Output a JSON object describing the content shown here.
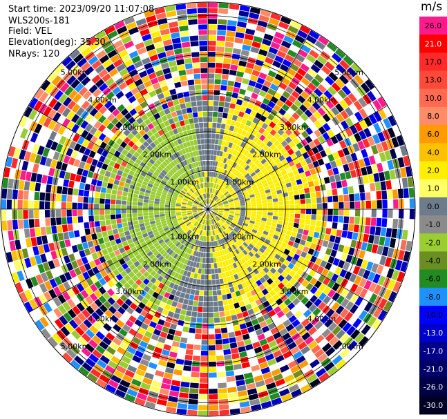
{
  "header": {
    "start_time": "Start time: 2023/09/20 11:07:08",
    "site": "WLS200s-181",
    "field": "Field: VEL",
    "elevation": "Elevation(deg): 35.30",
    "nrays": "NRays: 120"
  },
  "colorbar": {
    "unit": "m/s",
    "levels": [
      {
        "label": "26.0",
        "color": "#ff1a8c",
        "text": "#000000"
      },
      {
        "label": "21.0",
        "color": "#ff0000",
        "text": "#ffffff"
      },
      {
        "label": "17.0",
        "color": "#ff2a2a",
        "text": "#000000"
      },
      {
        "label": "13.0",
        "color": "#ff4a3a",
        "text": "#000000"
      },
      {
        "label": "10.0",
        "color": "#ff6a50",
        "text": "#000000"
      },
      {
        "label": "8.0",
        "color": "#ff8c69",
        "text": "#000000"
      },
      {
        "label": "6.0",
        "color": "#ff9a00",
        "text": "#000000"
      },
      {
        "label": "4.0",
        "color": "#ffc000",
        "text": "#000000"
      },
      {
        "label": "2.0",
        "color": "#ffee00",
        "text": "#000000"
      },
      {
        "label": "1.0",
        "color": "#ffff66",
        "text": "#000000"
      },
      {
        "label": "0.0",
        "color": "#6e7b8b",
        "text": "#000000"
      },
      {
        "label": "-1.0",
        "color": "#8b8b8b",
        "text": "#000000"
      },
      {
        "label": "-2.0",
        "color": "#9acd32",
        "text": "#000000"
      },
      {
        "label": "-4.0",
        "color": "#6b8e23",
        "text": "#000000"
      },
      {
        "label": "-6.0",
        "color": "#228b22",
        "text": "#000000"
      },
      {
        "label": "-8.0",
        "color": "#1e90ff",
        "text": "#000000"
      },
      {
        "label": "-10.0",
        "color": "#0000ff",
        "text": "#000000"
      },
      {
        "label": "-13.0",
        "color": "#0000cd",
        "text": "#ffffff"
      },
      {
        "label": "-17.0",
        "color": "#00008b",
        "text": "#ffffff"
      },
      {
        "label": "-21.0",
        "color": "#000066",
        "text": "#ffffff"
      },
      {
        "label": "-26.0",
        "color": "#000044",
        "text": "#ffffff"
      },
      {
        "label": "-30.0",
        "color": "#000022",
        "text": "#ffffff"
      }
    ]
  },
  "chart_data": {
    "type": "heatmap",
    "projection": "polar-ppi",
    "field": "VEL",
    "n_rays": 120,
    "range_rings": [
      {
        "label": "1.00km"
      },
      {
        "label": "2.00km"
      },
      {
        "label": "3.00km"
      },
      {
        "label": "4.00km"
      },
      {
        "label": "5.00km"
      }
    ],
    "sector_velocity_pattern": {
      "inner_core": {
        "color": "#ffee00"
      },
      "west_inbound": {
        "color": "#9acd32"
      },
      "east_outbound": {
        "color": "#ffee00"
      },
      "background_near_zero": {
        "color": "#6e7b8b"
      },
      "outer_noise": "multi-color"
    }
  }
}
